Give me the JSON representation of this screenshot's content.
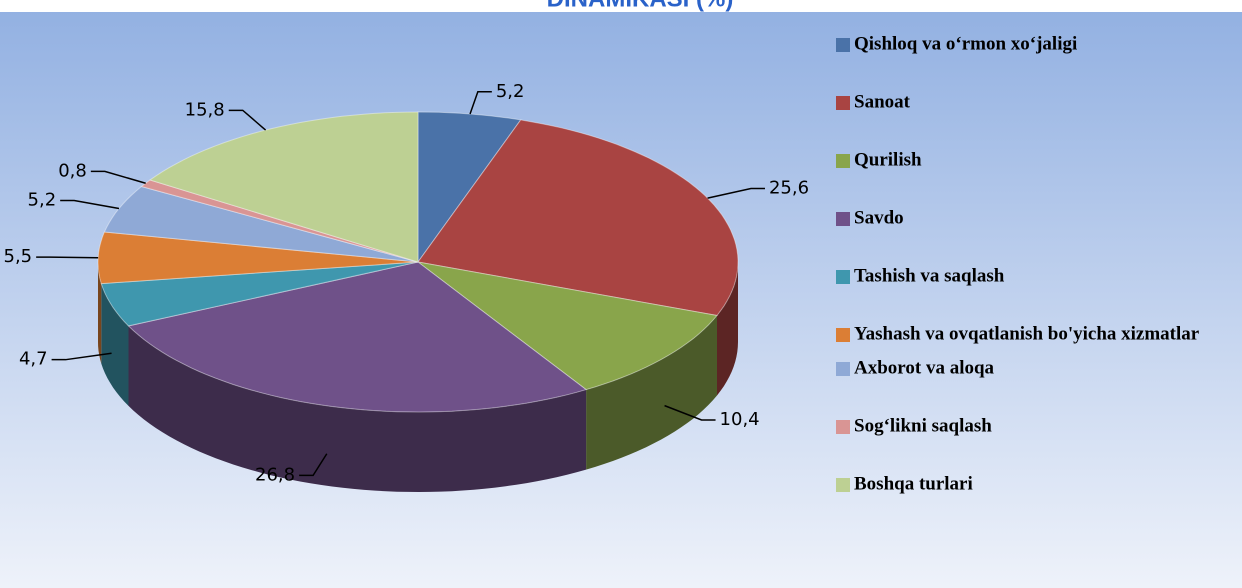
{
  "chart_data": {
    "type": "pie3d",
    "title": "DINAMIKASI (%)",
    "categories": [
      "Qishloq va o‘rmon xo‘jaligi",
      "Sanoat",
      "Qurilish",
      "Savdo",
      "Tashish va saqlash",
      "Yashash va ovqatlanish bo'yicha xizmatlar",
      "Axborot va aloqa",
      "Sog‘likni saqlash",
      "Boshqa turlari"
    ],
    "values": [
      5.2,
      25.6,
      10.4,
      26.8,
      4.7,
      5.5,
      5.2,
      0.8,
      15.8
    ],
    "value_labels": [
      "5,2",
      "25,6",
      "10,4",
      "26,8",
      "4,7",
      "5,5",
      "5,2",
      "0,8",
      "15,8"
    ],
    "colors": [
      "#4a72a8",
      "#a94442",
      "#89a54b",
      "#6f5189",
      "#3f97ae",
      "#db7e35",
      "#8fa9d6",
      "#d99594",
      "#bdd093"
    ]
  }
}
